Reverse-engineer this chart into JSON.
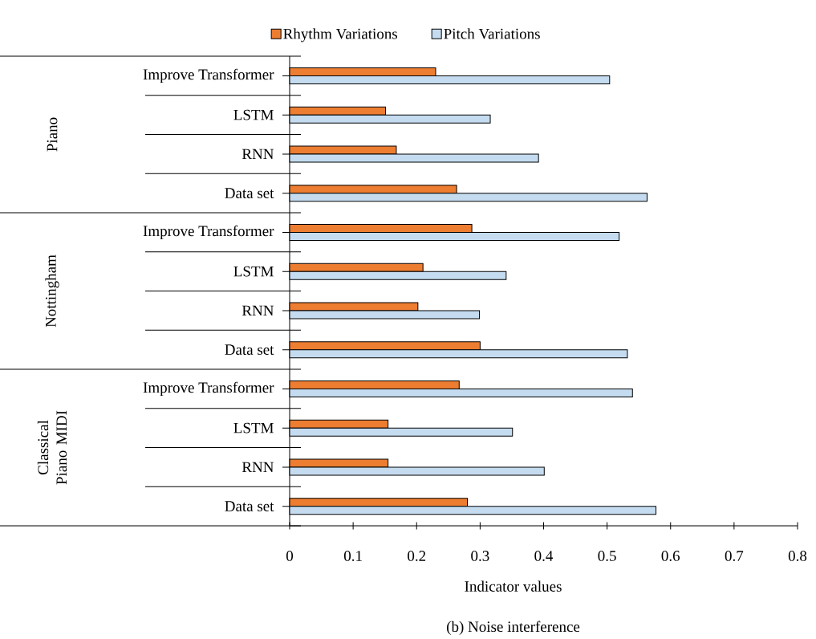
{
  "chart_data": {
    "type": "bar",
    "orientation": "horizontal",
    "title": "(b) Noise interference",
    "xlabel": "Indicator values",
    "categories": [
      "Improve Transformer",
      "LSTM",
      "RNN",
      "Data set",
      "Improve Transformer",
      "LSTM",
      "RNN",
      "Data set",
      "Improve Transformer",
      "LSTM",
      "RNN",
      "Data set"
    ],
    "series": [
      {
        "name": "Rhythm Variations",
        "color": "#ed7d31",
        "values": [
          0.23,
          0.151,
          0.168,
          0.263,
          0.287,
          0.21,
          0.202,
          0.3,
          0.267,
          0.155,
          0.155,
          0.28
        ]
      },
      {
        "name": "Pitch Variations",
        "color": "#c5dcf0",
        "values": [
          0.504,
          0.316,
          0.392,
          0.563,
          0.519,
          0.341,
          0.299,
          0.532,
          0.54,
          0.351,
          0.401,
          0.577
        ]
      }
    ],
    "xlim": [
      0,
      0.8
    ],
    "xticks": [
      0,
      0.1,
      0.2,
      0.3,
      0.4,
      0.5,
      0.6,
      0.7,
      0.8
    ],
    "annotations": [
      "Piano",
      "Nottingham",
      "Classical Piano MIDI"
    ],
    "legend": "top",
    "grid": false
  }
}
